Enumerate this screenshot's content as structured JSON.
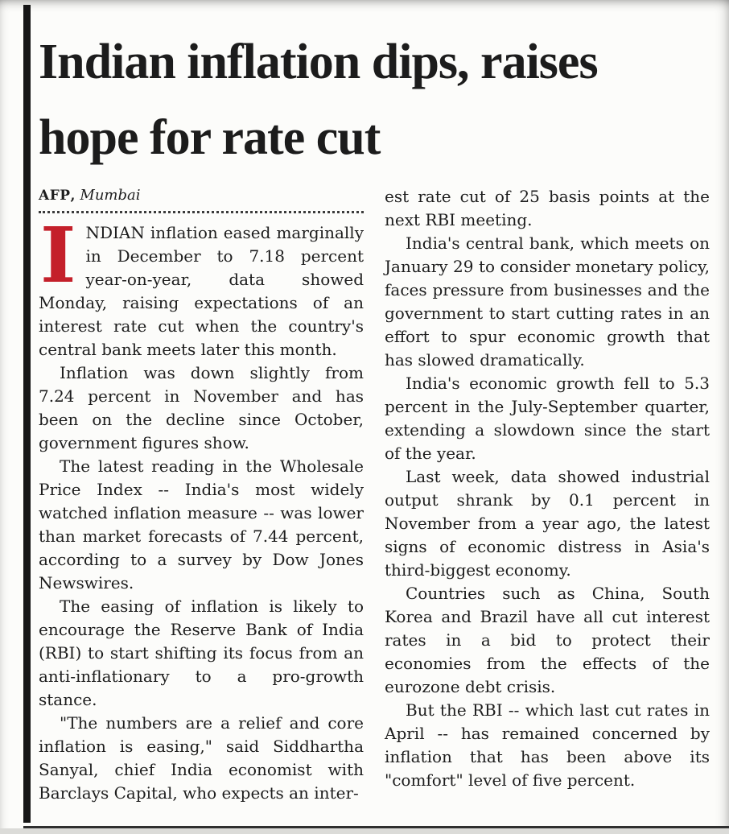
{
  "page": {
    "colors": {
      "accent": "#c4202a",
      "text": "#1d1d1d",
      "paper": "#fcfcfa",
      "bar": "#161616",
      "rule": "#2f2f2f"
    }
  },
  "article": {
    "headline_lines": [
      "Indian inflation dips, raises",
      "hope for rate cut"
    ],
    "byline": {
      "agency": "AFP",
      "separator": ", ",
      "location": "Mumbai"
    },
    "lead": {
      "dropcap": "I",
      "text": "NDIAN inflation eased marginally in December to 7.18 percent year-on-year, data showed Monday, raising expectations of an interest rate cut when the country's central bank meets later this month."
    },
    "left_column": {
      "paragraphs": [
        "Inflation was down slightly from 7.24 percent in November and has been on the decline since October, government figures show.",
        "The latest reading in the Wholesale Price Index -- India's most widely watched inflation measure -- was lower than market forecasts of 7.44 percent, according to a survey by Dow Jones Newswires.",
        "The easing of inflation is likely to encourage the Reserve Bank of India (RBI) to start shifting its focus from an anti-inflationary to a pro-growth stance.",
        "\"The numbers are a relief and core inflation is easing,\" said Siddhartha Sanyal, chief India economist with Barclays Capital, who expects an inter-"
      ]
    },
    "right_column": {
      "paragraphs": [
        "est rate cut of 25 basis points at the next RBI meeting.",
        "India's central bank, which meets on January 29 to consider monetary policy, faces pressure from businesses and the government to start cutting rates in an effort to spur economic growth that has slowed dramatically.",
        "India's economic growth fell to 5.3 percent in the July-September quarter, extending a slowdown since the start of the year.",
        "Last week, data showed industrial output shrank by 0.1 percent in November from a year ago, the latest signs of economic distress in Asia's third-biggest economy.",
        "Countries such as China, South Korea and Brazil have all cut interest rates in a bid to protect their economies from the effects of the eurozone debt crisis.",
        "But the RBI -- which last cut rates in April -- has remained concerned by inflation that has been above its \"comfort\" level of five percent."
      ]
    }
  }
}
